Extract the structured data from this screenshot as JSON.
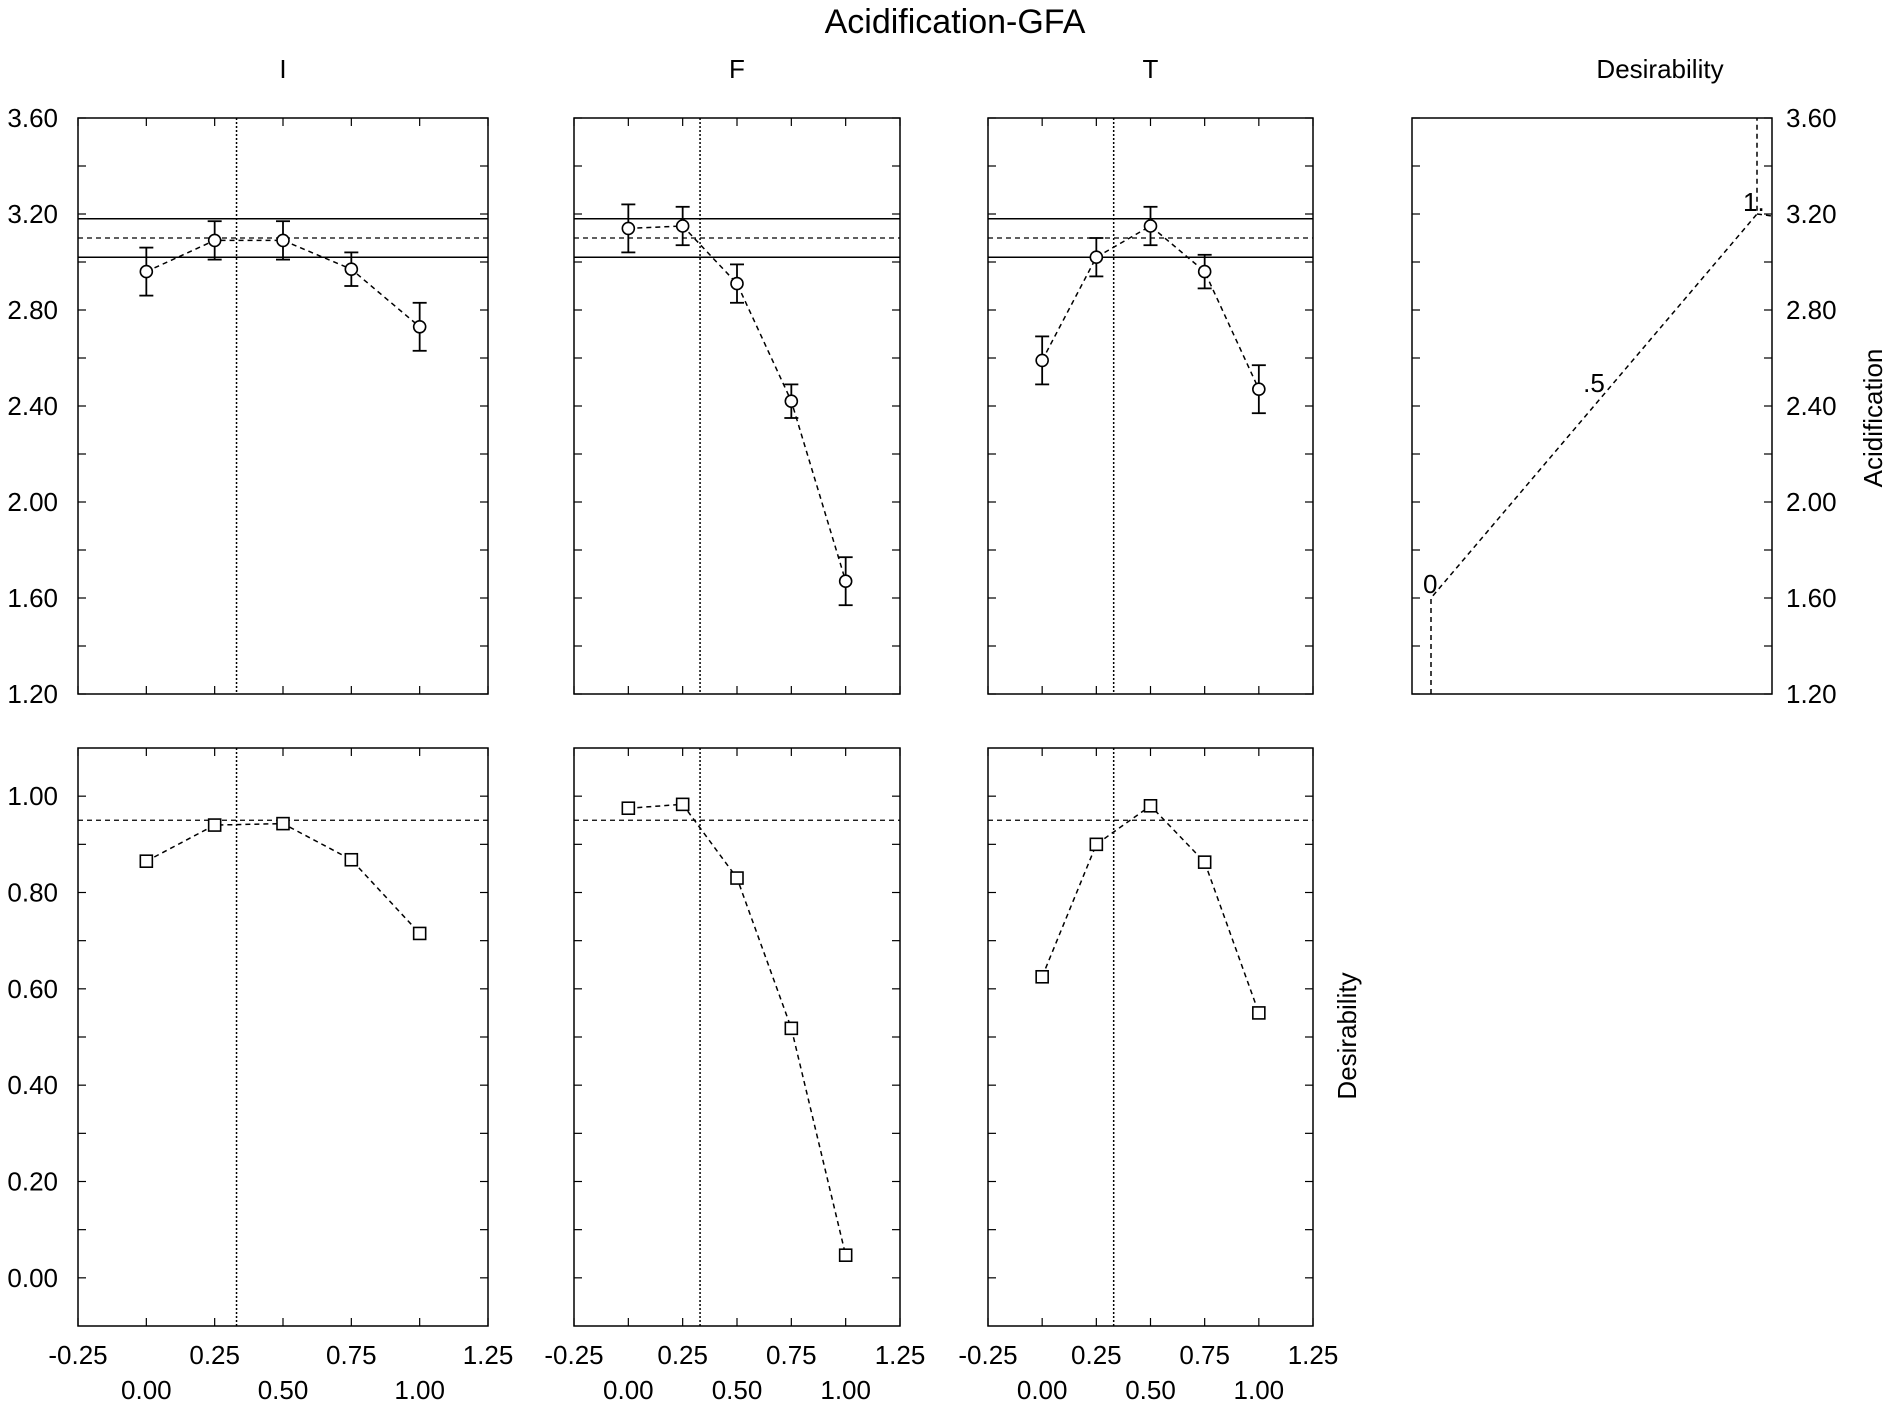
{
  "title": "Acidification-GFA",
  "colors": {
    "ink": "#000000",
    "background": "#ffffff"
  },
  "row_labels": {
    "response": "Acidification",
    "desirability": "Desirability"
  },
  "top_ticks": [
    "3.60",
    "3.20",
    "2.80",
    "2.40",
    "2.00",
    "1.60",
    "1.20"
  ],
  "bottom_ticks": [
    "1.00",
    "0.80",
    "0.60",
    "0.40",
    "0.20",
    "0.00"
  ],
  "x_ticks_upper": [
    "-0.25",
    "0.25",
    "0.75",
    "1.25"
  ],
  "x_ticks_lower": [
    "0.00",
    "0.50",
    "1.00"
  ],
  "desirability_labels": [
    "0",
    ".5",
    "1."
  ],
  "chart_data": [
    {
      "type": "line",
      "title": "I",
      "x": [
        0.0,
        0.25,
        0.5,
        0.75,
        1.0
      ],
      "current_x": 0.33,
      "response": {
        "values": [
          2.96,
          3.09,
          3.09,
          2.97,
          2.73
        ],
        "error": [
          0.1,
          0.08,
          0.08,
          0.07,
          0.1
        ],
        "ylim": [
          1.2,
          3.6
        ],
        "reference": 3.1,
        "band": [
          3.02,
          3.18
        ]
      },
      "desirability": {
        "values": [
          0.865,
          0.94,
          0.943,
          0.868,
          0.715
        ],
        "reference": 0.95,
        "ylim": [
          -0.1,
          1.1
        ]
      },
      "xlim": [
        -0.25,
        1.25
      ]
    },
    {
      "type": "line",
      "title": "F",
      "x": [
        0.0,
        0.25,
        0.5,
        0.75,
        1.0
      ],
      "current_x": 0.33,
      "response": {
        "values": [
          3.14,
          3.15,
          2.91,
          2.42,
          1.67
        ],
        "error": [
          0.1,
          0.08,
          0.08,
          0.07,
          0.1
        ],
        "ylim": [
          1.2,
          3.6
        ],
        "reference": 3.1,
        "band": [
          3.02,
          3.18
        ]
      },
      "desirability": {
        "values": [
          0.975,
          0.983,
          0.83,
          0.518,
          0.047
        ],
        "reference": 0.95,
        "ylim": [
          -0.1,
          1.1
        ]
      },
      "xlim": [
        -0.25,
        1.25
      ]
    },
    {
      "type": "line",
      "title": "T",
      "x": [
        0.0,
        0.25,
        0.5,
        0.75,
        1.0
      ],
      "current_x": 0.33,
      "response": {
        "values": [
          2.59,
          3.02,
          3.15,
          2.96,
          2.47
        ],
        "error": [
          0.1,
          0.08,
          0.08,
          0.07,
          0.1
        ],
        "ylim": [
          1.2,
          3.6
        ],
        "reference": 3.1,
        "band": [
          3.02,
          3.18
        ]
      },
      "desirability": {
        "values": [
          0.625,
          0.9,
          0.98,
          0.863,
          0.55
        ],
        "reference": 0.95,
        "ylim": [
          -0.1,
          1.1
        ]
      },
      "xlim": [
        -0.25,
        1.25
      ]
    },
    {
      "type": "line",
      "title": "Desirability",
      "profile": [
        {
          "d": 0.0,
          "y": 1.2
        },
        {
          "d": 0.0,
          "y": 1.6
        },
        {
          "d": 1.0,
          "y": 3.2
        },
        {
          "d": 1.0,
          "y": 3.6
        }
      ],
      "ylim": [
        1.2,
        3.6
      ]
    }
  ]
}
